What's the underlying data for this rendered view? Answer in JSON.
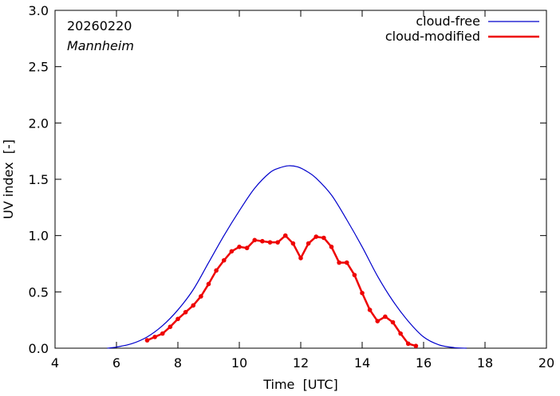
{
  "chart_data": {
    "type": "line",
    "title": "",
    "xlabel": "Time  [UTC]",
    "ylabel": "UV index  [-]",
    "xlim": [
      4,
      20
    ],
    "ylim": [
      0.0,
      3.0
    ],
    "xticks": [
      4,
      6,
      8,
      10,
      12,
      14,
      16,
      18,
      20
    ],
    "xtick_labels": [
      "4",
      "6",
      "8",
      "10",
      "12",
      "14",
      "16",
      "18",
      "20"
    ],
    "yticks": [
      0.0,
      0.5,
      1.0,
      1.5,
      2.0,
      2.5,
      3.0
    ],
    "ytick_labels": [
      "0.0",
      "0.5",
      "1.0",
      "1.5",
      "2.0",
      "2.5",
      "3.0"
    ],
    "grid": false,
    "legend_position": "top-right",
    "annotations": {
      "date": "20260220",
      "location": "Mannheim"
    },
    "series": [
      {
        "name": "cloud-free",
        "color": "#0000cc",
        "markers": false,
        "x": [
          5.7,
          6.0,
          6.5,
          7.0,
          7.5,
          8.0,
          8.5,
          9.0,
          9.5,
          10.0,
          10.5,
          11.0,
          11.3,
          11.6,
          11.9,
          12.2,
          12.5,
          13.0,
          13.5,
          14.0,
          14.5,
          15.0,
          15.5,
          16.0,
          16.5,
          17.0,
          17.4
        ],
        "values": [
          0.0,
          0.01,
          0.04,
          0.1,
          0.2,
          0.34,
          0.52,
          0.76,
          1.0,
          1.22,
          1.42,
          1.56,
          1.6,
          1.62,
          1.61,
          1.57,
          1.51,
          1.36,
          1.14,
          0.9,
          0.64,
          0.42,
          0.24,
          0.1,
          0.03,
          0.005,
          0.0
        ]
      },
      {
        "name": "cloud-modified",
        "color": "#ee0000",
        "markers": true,
        "x": [
          7.0,
          7.25,
          7.5,
          7.75,
          8.0,
          8.25,
          8.5,
          8.75,
          9.0,
          9.25,
          9.5,
          9.75,
          10.0,
          10.25,
          10.5,
          10.75,
          11.0,
          11.25,
          11.5,
          11.75,
          12.0,
          12.25,
          12.5,
          12.75,
          13.0,
          13.25,
          13.5,
          13.75,
          14.0,
          14.25,
          14.5,
          14.75,
          15.0,
          15.25,
          15.5,
          15.75
        ],
        "values": [
          0.07,
          0.1,
          0.13,
          0.19,
          0.26,
          0.32,
          0.38,
          0.46,
          0.57,
          0.69,
          0.78,
          0.86,
          0.9,
          0.89,
          0.96,
          0.95,
          0.94,
          0.94,
          1.0,
          0.93,
          0.8,
          0.93,
          0.99,
          0.98,
          0.9,
          0.76,
          0.76,
          0.65,
          0.49,
          0.34,
          0.24,
          0.28,
          0.23,
          0.13,
          0.04,
          0.02
        ]
      }
    ]
  }
}
